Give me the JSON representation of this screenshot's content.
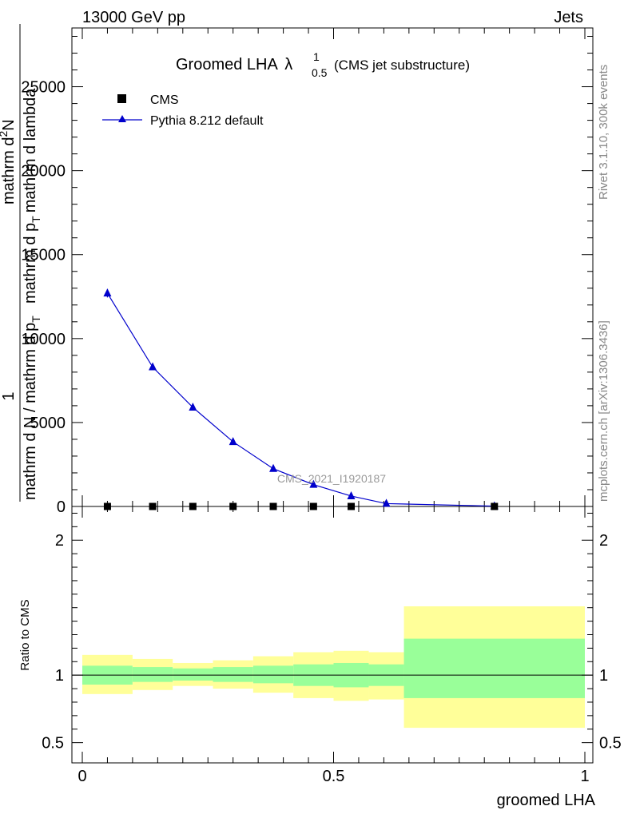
{
  "header": {
    "energy_label": "13000 GeV pp",
    "process_label": "Jets"
  },
  "side_labels": {
    "rivet": "Rivet 3.1.10,  300k events",
    "mcplots": "mcplots.cern.ch [arXiv:1306.3436]"
  },
  "chart_data": [
    {
      "type": "line",
      "title": {
        "main": "Groomed LHA",
        "lambda": "λ",
        "sup": "1",
        "sub": "0.5",
        "suffix": "(CMS jet substructure)"
      },
      "analysis_watermark": "CMS_2021_I1920187",
      "ylabel": {
        "numerator": "1",
        "denominator": "mathrm d N / mathrm d p",
        "denominator_sub": "T",
        "overlay_top": "mathrm d",
        "overlay_top_sup": "2",
        "overlay_top_rest": "N",
        "overlay_bottom": "mathrm d p",
        "overlay_bottom_sub": "T",
        "overlay_bottom_rest": "mathrm d lambda"
      },
      "xlim": [
        0,
        1
      ],
      "ylim": [
        0,
        28500
      ],
      "y_ticks": [
        0,
        5000,
        10000,
        15000,
        20000,
        25000
      ],
      "y_tick_labels": [
        "0",
        "5000",
        "10000",
        "15000",
        "20000",
        "25000"
      ],
      "legend": {
        "position": "top-left",
        "entries": [
          {
            "name": "CMS",
            "marker": "square",
            "color": "#000000"
          },
          {
            "name": "Pythia 8.212 default",
            "marker": "triangle",
            "color": "#0000cc"
          }
        ]
      },
      "series": [
        {
          "name": "CMS",
          "x": [
            0.05,
            0.14,
            0.22,
            0.3,
            0.38,
            0.46,
            0.535,
            0.82
          ],
          "y": [
            0,
            0,
            0,
            0,
            0,
            0,
            0,
            0
          ]
        },
        {
          "name": "Pythia 8.212 default",
          "x": [
            0.05,
            0.14,
            0.22,
            0.3,
            0.38,
            0.46,
            0.535,
            0.605,
            0.82
          ],
          "y": [
            12700,
            8300,
            5900,
            3850,
            2250,
            1300,
            620,
            170,
            20
          ],
          "y_err": [
            250,
            150,
            120,
            90,
            70,
            50,
            40,
            20,
            10
          ]
        }
      ]
    },
    {
      "type": "area",
      "ylabel": "Ratio to CMS",
      "xlabel": "groomed LHA",
      "xlim": [
        0,
        1
      ],
      "ylim": [
        0.35,
        2.25
      ],
      "y_ticks": [
        0.5,
        1,
        2
      ],
      "y_tick_labels": [
        "0.5",
        "1",
        "2"
      ],
      "x_ticks": [
        0,
        0.5,
        1
      ],
      "x_tick_labels": [
        "0",
        "0.5",
        "1"
      ],
      "colors": {
        "inner_band": "#99ff99",
        "outer_band": "#ffff99",
        "reference": "#000000"
      },
      "bins": [
        {
          "lo": 0.0,
          "hi": 0.1,
          "inner": [
            0.93,
            1.07
          ],
          "outer": [
            0.86,
            1.15
          ]
        },
        {
          "lo": 0.1,
          "hi": 0.18,
          "inner": [
            0.95,
            1.06
          ],
          "outer": [
            0.89,
            1.12
          ]
        },
        {
          "lo": 0.18,
          "hi": 0.26,
          "inner": [
            0.96,
            1.05
          ],
          "outer": [
            0.92,
            1.09
          ]
        },
        {
          "lo": 0.26,
          "hi": 0.34,
          "inner": [
            0.95,
            1.06
          ],
          "outer": [
            0.9,
            1.11
          ]
        },
        {
          "lo": 0.34,
          "hi": 0.42,
          "inner": [
            0.94,
            1.07
          ],
          "outer": [
            0.87,
            1.14
          ]
        },
        {
          "lo": 0.42,
          "hi": 0.5,
          "inner": [
            0.92,
            1.08
          ],
          "outer": [
            0.83,
            1.17
          ]
        },
        {
          "lo": 0.5,
          "hi": 0.57,
          "inner": [
            0.91,
            1.09
          ],
          "outer": [
            0.81,
            1.18
          ]
        },
        {
          "lo": 0.57,
          "hi": 0.64,
          "inner": [
            0.92,
            1.08
          ],
          "outer": [
            0.82,
            1.17
          ]
        },
        {
          "lo": 0.64,
          "hi": 1.0,
          "inner": [
            0.83,
            1.27
          ],
          "outer": [
            0.61,
            1.51
          ]
        }
      ]
    }
  ]
}
